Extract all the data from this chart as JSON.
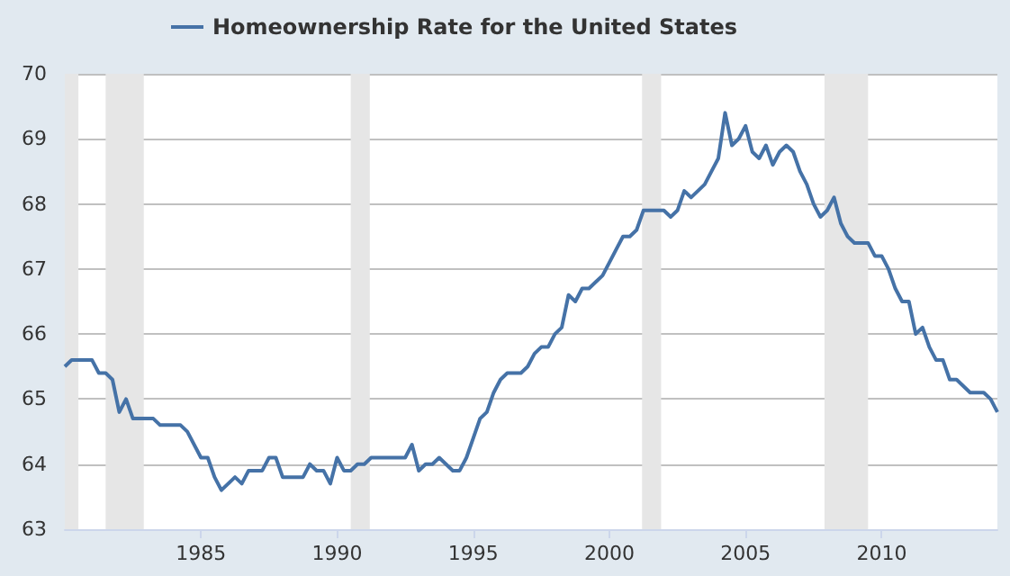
{
  "chart_data": {
    "type": "line",
    "grid": "y",
    "legend": "top left",
    "line_style": "solid",
    "xlim": [
      1980,
      2014.25
    ],
    "xticks": [
      1985,
      1990,
      1995,
      2000,
      2005,
      2010
    ],
    "ylim": [
      63,
      70
    ],
    "yticks": [
      63,
      64,
      65,
      66,
      67,
      68,
      69,
      70
    ],
    "bands": [
      {
        "axis": "x",
        "from": 1980,
        "to": 1980.5,
        "color": "#e6e6e6"
      },
      {
        "axis": "x",
        "from": 1981.5,
        "to": 1982.9,
        "color": "#e6e6e6"
      },
      {
        "axis": "x",
        "from": 1990.5,
        "to": 1991.2,
        "color": "#e6e6e6"
      },
      {
        "axis": "x",
        "from": 2001.2,
        "to": 2001.9,
        "color": "#e6e6e6"
      },
      {
        "axis": "x",
        "from": 2007.9,
        "to": 2009.5,
        "color": "#e6e6e6"
      }
    ],
    "series": [
      {
        "name": "Homeownership Rate for the United States",
        "color": "#4572a7",
        "x": [
          1980,
          1980.25,
          1981,
          1981.25,
          1981.5,
          1981.75,
          1982,
          1982.25,
          1982.5,
          1983.25,
          1983.5,
          1984.25,
          1984.5,
          1985,
          1985.25,
          1985.5,
          1985.75,
          1986.25,
          1986.5,
          1986.75,
          1987.25,
          1987.5,
          1987.75,
          1988,
          1988.75,
          1989,
          1989.25,
          1989.5,
          1989.75,
          1990,
          1990.25,
          1990.5,
          1990.75,
          1991,
          1991.25,
          1992.5,
          1992.75,
          1993,
          1993.25,
          1993.5,
          1993.75,
          1994.25,
          1994.5,
          1994.75,
          1995,
          1995.25,
          1995.5,
          1995.75,
          1996,
          1996.25,
          1996.75,
          1997,
          1997.25,
          1997.5,
          1997.75,
          1998,
          1998.25,
          1998.5,
          1998.75,
          1999,
          1999.25,
          1999.5,
          1999.75,
          2000,
          2000.25,
          2000.5,
          2000.75,
          2001,
          2001.25,
          2002,
          2002.25,
          2002.5,
          2002.75,
          2003,
          2003.5,
          2003.75,
          2004,
          2004.25,
          2004.5,
          2004.75,
          2005,
          2005.25,
          2005.5,
          2005.75,
          2006,
          2006.25,
          2006.5,
          2006.75,
          2007,
          2007.25,
          2007.5,
          2007.75,
          2008,
          2008.25,
          2008.5,
          2008.75,
          2009,
          2009.5,
          2009.75,
          2010,
          2010.25,
          2010.5,
          2010.75,
          2011,
          2011.25,
          2011.5,
          2011.75,
          2012,
          2012.25,
          2012.5,
          2012.75,
          2013.25,
          2013.75,
          2014,
          2014.25
        ],
        "values": [
          65.5,
          65.6,
          65.6,
          65.4,
          65.4,
          65.3,
          64.8,
          65.0,
          64.7,
          64.7,
          64.6,
          64.6,
          64.5,
          64.1,
          64.1,
          63.8,
          63.6,
          63.8,
          63.7,
          63.9,
          63.9,
          64.1,
          64.1,
          63.8,
          63.8,
          64.0,
          63.9,
          63.9,
          63.7,
          64.1,
          63.9,
          63.9,
          64.0,
          64.0,
          64.1,
          64.1,
          64.3,
          63.9,
          64.0,
          64.0,
          64.1,
          63.9,
          63.9,
          64.1,
          64.4,
          64.7,
          64.8,
          65.1,
          65.3,
          65.4,
          65.4,
          65.5,
          65.7,
          65.8,
          65.8,
          66.0,
          66.1,
          66.6,
          66.5,
          66.7,
          66.7,
          66.8,
          66.9,
          67.1,
          67.3,
          67.5,
          67.5,
          67.6,
          67.9,
          67.9,
          67.8,
          67.9,
          68.2,
          68.1,
          68.3,
          68.5,
          68.7,
          69.4,
          68.9,
          69.0,
          69.2,
          68.8,
          68.7,
          68.9,
          68.6,
          68.8,
          68.9,
          68.8,
          68.5,
          68.3,
          68.0,
          67.8,
          67.9,
          68.1,
          67.7,
          67.5,
          67.4,
          67.4,
          67.2,
          67.2,
          67.0,
          66.7,
          66.5,
          66.5,
          66.0,
          66.1,
          65.8,
          65.6,
          65.6,
          65.3,
          65.3,
          65.1,
          65.1,
          65.0,
          64.8
        ]
      }
    ]
  }
}
